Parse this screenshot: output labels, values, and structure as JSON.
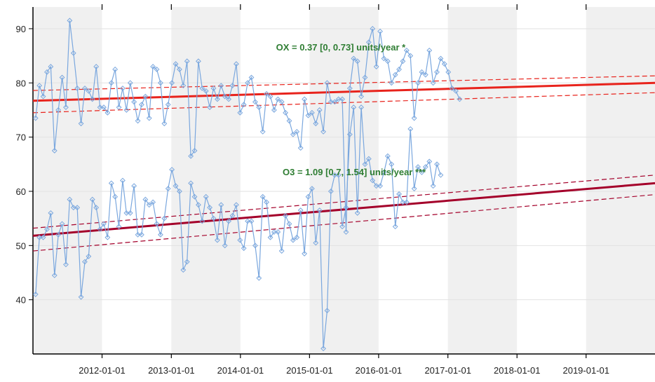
{
  "chart_data": {
    "type": "line",
    "title": "",
    "xlabel": "",
    "ylabel": "",
    "xlim": [
      "2011-01-01",
      "2019-12-31"
    ],
    "ylim": [
      30,
      94
    ],
    "grid": true,
    "background_bands": "alternating yearly shading",
    "x_tick_labels": [
      "2012-01-01",
      "2013-01-01",
      "2014-01-01",
      "2015-01-01",
      "2016-01-01",
      "2017-01-01",
      "2018-01-01",
      "2019-01-01"
    ],
    "y_tick_labels": [
      "40",
      "50",
      "60",
      "70",
      "80",
      "90"
    ],
    "colors": {
      "series": "#7aa7de",
      "ox_trend": "#e8231c",
      "o3_trend": "#a4002a",
      "annotation": "#2e7d32",
      "band": "#f0f0f0",
      "grid": "#e2e2e2"
    },
    "annotations": [
      {
        "text": "OX = 0.37 [0, 0.73] units/year *",
        "x": "2015-06-15",
        "y": 86
      },
      {
        "text": "O3 = 1.09 [0.7, 1.54] units/year ***",
        "x": "2015-08-25",
        "y": 63
      }
    ],
    "series": [
      {
        "start": "2011-01-15",
        "step_days": 20,
        "values": [
          73.5,
          79.5,
          77.5,
          82,
          83,
          67.5,
          75,
          81,
          75.5,
          91.5,
          85.5,
          79,
          72.5,
          79,
          78.5,
          77,
          83,
          75.5,
          75.5,
          74.5,
          80,
          82.5,
          75.5,
          79,
          75,
          80,
          76.5,
          73,
          76,
          77.5,
          73.5,
          83,
          82.5,
          80,
          72.5,
          76,
          80,
          83.5,
          82.5,
          79.5,
          84,
          66.5,
          67.5,
          84,
          79,
          78.5,
          75.5,
          79,
          77,
          79.5,
          77.5,
          77,
          79.5,
          83.5,
          74.5,
          76,
          80,
          81,
          76.5,
          75.5,
          71,
          78,
          77.5,
          75,
          77,
          76.5,
          74.5,
          73,
          70.5,
          71,
          68,
          77,
          74,
          74.5,
          72.5,
          75,
          71,
          80,
          76.5,
          76.5,
          77,
          77,
          52.5,
          79,
          84.5,
          84,
          77.5,
          81,
          87.5,
          90,
          83,
          89.5,
          84.5,
          84,
          80,
          81.5,
          82.5,
          84,
          86,
          85,
          73.5,
          80,
          82,
          81.5,
          86,
          80,
          82,
          84.5,
          83.5,
          82,
          79,
          78.5,
          77
        ]
      },
      {
        "start": "2011-01-15",
        "step_days": 20,
        "values": [
          41,
          51.5,
          51.5,
          53,
          56,
          44.5,
          52,
          54,
          46.5,
          58.5,
          57,
          57,
          40.5,
          47,
          48,
          58.5,
          57,
          53,
          54,
          51.5,
          61.5,
          59,
          53.5,
          62,
          56,
          56,
          61,
          52,
          52,
          58.5,
          57.5,
          58,
          54,
          52,
          55,
          60.5,
          64,
          61,
          60,
          45.5,
          47,
          61.5,
          59,
          57.5,
          54.5,
          59,
          57,
          55,
          51,
          57.5,
          50,
          54.5,
          55.5,
          57.5,
          51,
          49.5,
          54.5,
          54.5,
          50,
          44,
          59,
          58,
          51.5,
          52.5,
          52.5,
          49,
          55.5,
          54,
          51,
          51.5,
          56.5,
          48.5,
          59,
          60.5,
          50.5,
          56.5,
          31,
          38,
          60,
          63,
          63,
          53.5,
          57,
          70.5,
          75.5,
          56,
          75.5,
          65,
          66,
          62,
          61,
          61,
          63.5,
          66.5,
          65,
          53.5,
          59.5,
          58,
          58,
          71.5,
          60.5,
          64.5,
          63.5,
          64.5,
          65.5,
          61,
          65,
          63
        ]
      }
    ],
    "trends": [
      {
        "name": "OX",
        "y_start": 76.7,
        "y_end": 80.0,
        "lower_start": 74.5,
        "lower_end": 78.2,
        "upper_start": 78.6,
        "upper_end": 81.3
      },
      {
        "name": "O3",
        "y_start": 51.8,
        "y_end": 61.5,
        "lower_start": 49.0,
        "lower_end": 59.4,
        "upper_start": 53.2,
        "upper_end": 63.0
      }
    ]
  }
}
